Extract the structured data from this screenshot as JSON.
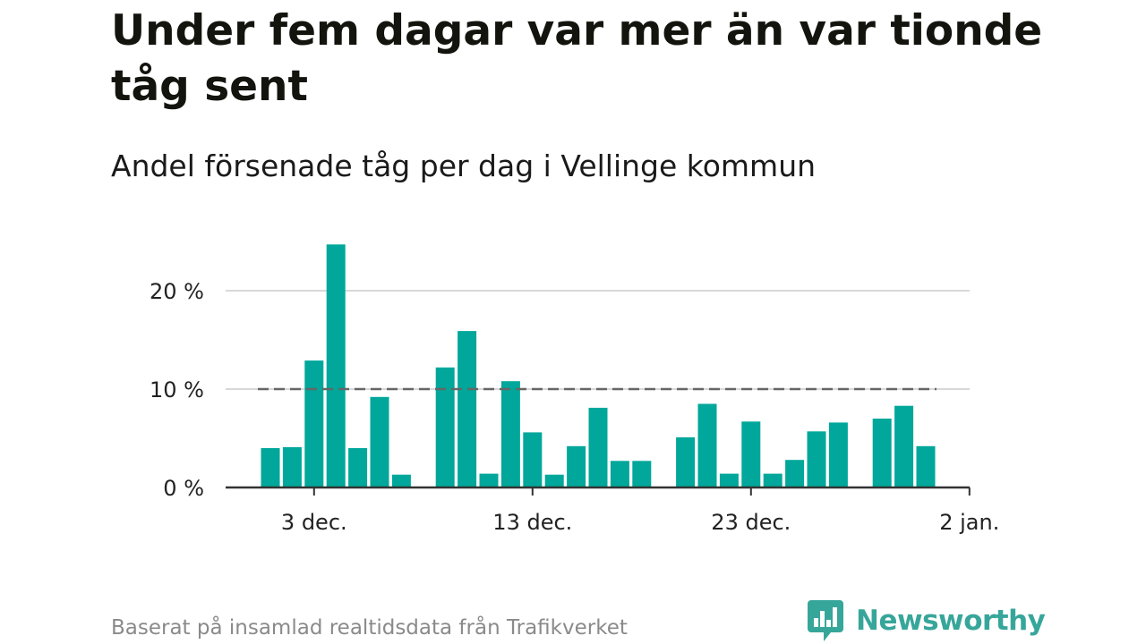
{
  "title": "Under fem dagar var mer än var tionde tåg sent",
  "subtitle": "Andel försenade tåg per dag i Vellinge kommun",
  "source": "Baserat på insamlad realtidsdata från Trafikverket",
  "logo": {
    "text": "Newsworthy",
    "icon": "newsworthy-logo-icon"
  },
  "colors": {
    "bar": "#00a79a",
    "threshold": "#666666",
    "grid": "#d8d8d8",
    "axis": "#333333",
    "logo": "#37a69a"
  },
  "chart_data": {
    "type": "bar",
    "x_axis_type": "date",
    "x": [
      "2023-12-01",
      "2023-12-02",
      "2023-12-03",
      "2023-12-04",
      "2023-12-05",
      "2023-12-06",
      "2023-12-07",
      "2023-12-08",
      "2023-12-09",
      "2023-12-10",
      "2023-12-11",
      "2023-12-12",
      "2023-12-13",
      "2023-12-14",
      "2023-12-15",
      "2023-12-16",
      "2023-12-17",
      "2023-12-18",
      "2023-12-19",
      "2023-12-20",
      "2023-12-21",
      "2023-12-22",
      "2023-12-23",
      "2023-12-24",
      "2023-12-25",
      "2023-12-26",
      "2023-12-27",
      "2023-12-28",
      "2023-12-29",
      "2023-12-30",
      "2023-12-31",
      "2024-01-01"
    ],
    "values": [
      4.0,
      4.1,
      12.9,
      24.7,
      4.0,
      9.2,
      1.3,
      null,
      12.2,
      15.9,
      1.4,
      10.8,
      5.6,
      1.3,
      4.2,
      8.1,
      2.7,
      2.7,
      null,
      5.1,
      8.5,
      1.4,
      6.7,
      1.4,
      2.8,
      5.7,
      6.6,
      null,
      7.0,
      8.3,
      4.2,
      null
    ],
    "threshold": 10,
    "ylim": [
      0,
      25
    ],
    "y_ticks": [
      0,
      10,
      20
    ],
    "y_tick_labels": [
      "0 %",
      "10 %",
      "20 %"
    ],
    "x_ticks": [
      "2023-12-03",
      "2023-12-13",
      "2023-12-23",
      "2024-01-02"
    ],
    "x_tick_labels": [
      "3 dec.",
      "13 dec.",
      "23 dec.",
      "2 jan."
    ],
    "grid": true
  }
}
